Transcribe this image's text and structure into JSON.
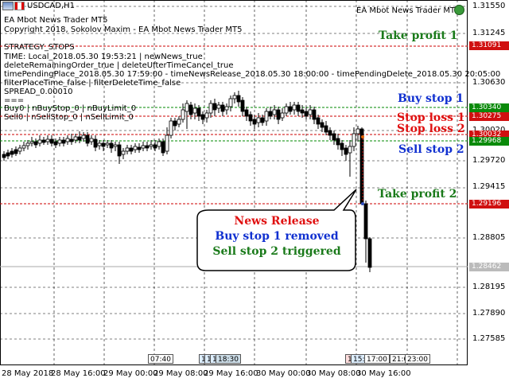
{
  "window": {
    "symbol_title": "USDCAD,H1",
    "expert_name": "EA Mbot News Trader MT5"
  },
  "info_lines": {
    "copyright": "Copyright 2018, Sokolov Maxim - EA Mbot News Trader MT5",
    "strategy": "STRATEGY_STOPS",
    "time": "TIME: Local_2018.05.30 19:53:21 | newNews_true",
    "delete": "deleteRemainingOrder_true | deleteUfterTimeCancel_true",
    "pending": "timePendingPlace_2018.05.30 17:59:00 - timeNewsRelease_2018.05.30 18:00:00 - timePendingDelete_2018.05.30 20:05:00",
    "filter": "filterPlaceTime_false | filterDeleteTime_false",
    "spread": "SPREAD_0.00010",
    "separator": "===",
    "buy_counts": "Buy0 | nBuyStop_0 | nBuyLimit_0",
    "sell_counts": "Sell0 | nSellStop_0 | nSellLimit_0"
  },
  "annotations": {
    "take_profit_1": "Take profit 1",
    "buy_stop_1": "Buy stop 1",
    "stop_loss_1": "Stop loss 1",
    "stop_loss_2": "Stop loss 2",
    "sell_stop_2": "Sell stop 2",
    "take_profit_2": "Take profit 2"
  },
  "callout": {
    "line1": "News Release",
    "line2": "Buy stop 1 removed",
    "line3": "Sell stop 2  triggered"
  },
  "price_axis": {
    "ticks": [
      "1.31550",
      "1.31245",
      "1.30630",
      "1.30020",
      "1.29720",
      "1.29415",
      "1.28805",
      "1.28195",
      "1.27890",
      "1.27585"
    ],
    "tags": {
      "tp1": "1.31091",
      "buy_stop": "1.30340",
      "stop_loss_1": "1.30275",
      "stop_loss_2": "1.30032",
      "sell_stop": "1.29968",
      "tp2": "1.29196",
      "current": "1.28462"
    }
  },
  "time_axis": {
    "ticks": [
      "28 May 2018",
      "28 May 16:00",
      "29 May 00:00",
      "29 May 08:00",
      "29 May 16:00",
      "30 May 00:00",
      "30 May 08:00",
      "30 May 16:00"
    ],
    "markers": {
      "m1": "07:40",
      "m2a": "1",
      "m2b": "1",
      "m2c": "1",
      "m2d": "18:30",
      "m3a": "1",
      "m3b": "15:",
      "m3c": "17:00",
      "m3d": "21:0",
      "m3e": "23:00"
    }
  },
  "colors": {
    "take_profit": "#1a7a1a",
    "buy": "#1030d0",
    "stop_loss": "#e01010",
    "line_red": "#cc0000",
    "line_green": "#008800",
    "grid": "#000000"
  }
}
